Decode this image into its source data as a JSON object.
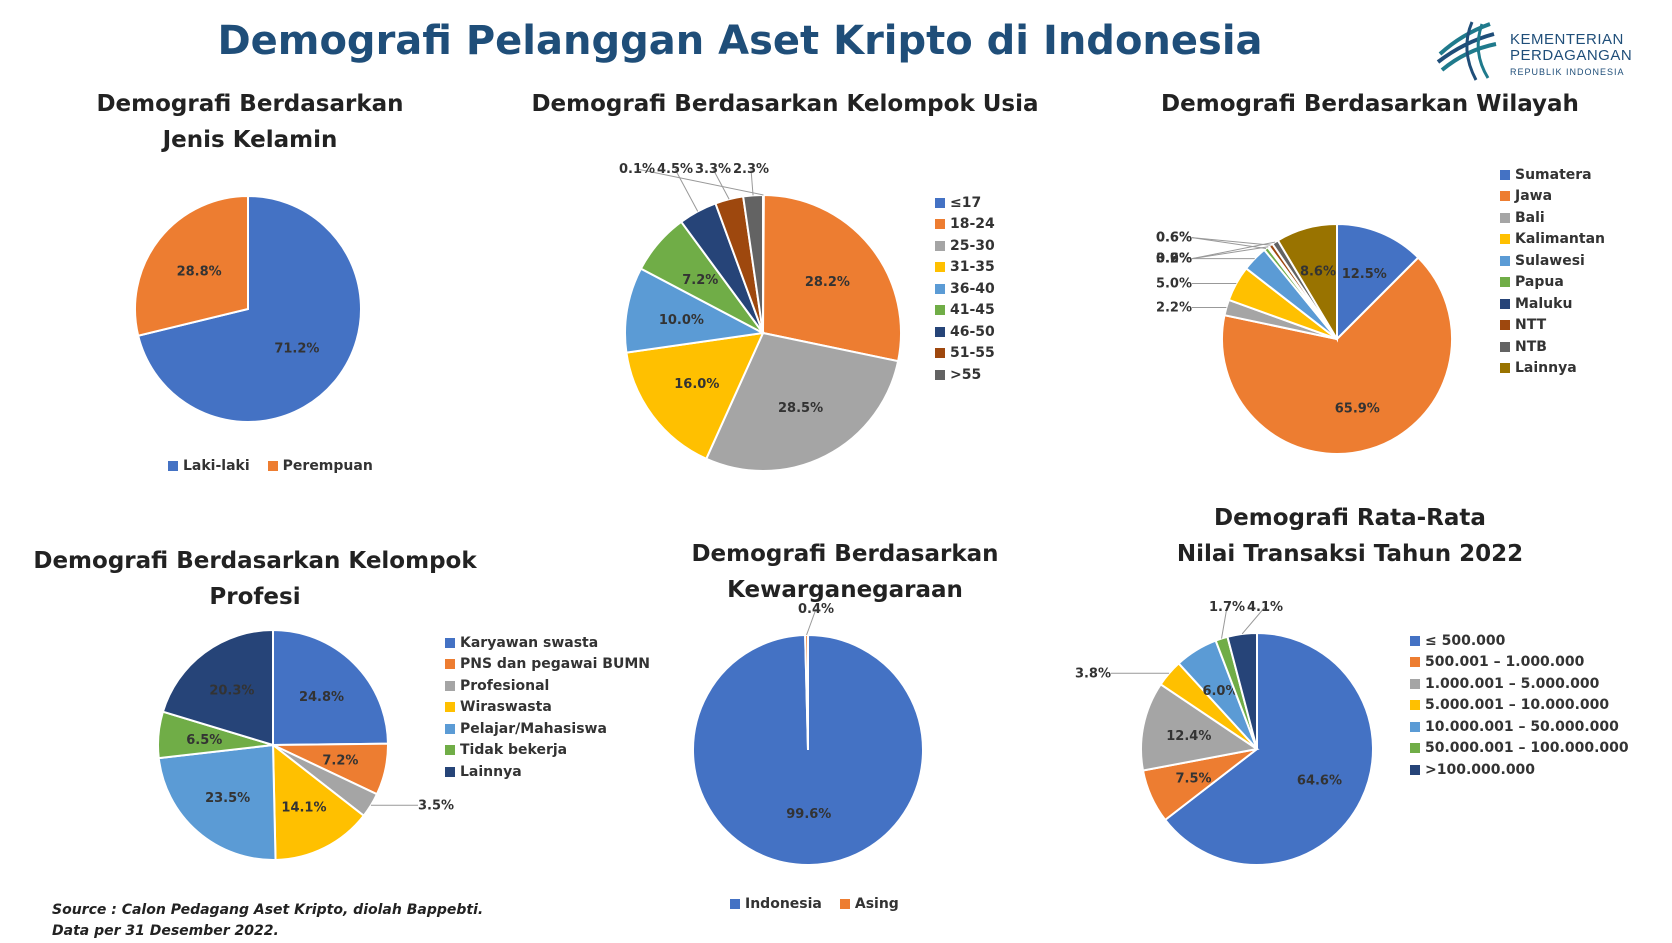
{
  "header": {
    "title": "Demografi Pelanggan Aset Kripto di Indonesia",
    "logo_line1": "KEMENTERIAN",
    "logo_line2": "PERDAGANGAN",
    "logo_line3": "REPUBLIK INDONESIA"
  },
  "footer": {
    "source": "Source : Calon Pedagang Aset Kripto, diolah Bappebti.",
    "date": "Data per 31 Desember 2022."
  },
  "chart_data": [
    {
      "id": "gender",
      "type": "pie",
      "title": [
        "Demografi Berdasarkan",
        "Jenis Kelamin"
      ],
      "legend_position": "bottom",
      "categories": [
        "Laki-laki",
        "Perempuan"
      ],
      "values": [
        71.2,
        28.8
      ],
      "labels": [
        "71.2%",
        "28.8%"
      ],
      "colors": [
        "#4472c4",
        "#ed7d31"
      ]
    },
    {
      "id": "age",
      "type": "pie",
      "title": [
        "Demografi Berdasarkan Kelompok Usia"
      ],
      "legend_position": "right",
      "categories": [
        "≤17",
        "18-24",
        "25-30",
        "31-35",
        "36-40",
        "41-45",
        "46-50",
        "51-55",
        ">55"
      ],
      "values": [
        0.1,
        28.2,
        28.5,
        16.0,
        10.0,
        7.2,
        4.5,
        3.3,
        2.3
      ],
      "labels": [
        "0.1%",
        "28.2%",
        "28.5%",
        "16.0%",
        "10.0%",
        "7.2%",
        "4.5%",
        "3.3%",
        "2.3%"
      ],
      "colors": [
        "#4472c4",
        "#ed7d31",
        "#a5a5a5",
        "#ffc000",
        "#5b9bd5",
        "#70ad47",
        "#264478",
        "#9e480e",
        "#636363"
      ]
    },
    {
      "id": "region",
      "type": "pie",
      "title": [
        "Demografi Berdasarkan Wilayah"
      ],
      "legend_position": "right",
      "categories": [
        "Sumatera",
        "Jawa",
        "Bali",
        "Kalimantan",
        "Sulawesi",
        "Papua",
        "Maluku",
        "NTT",
        "NTB",
        "Lainnya"
      ],
      "values": [
        12.5,
        65.9,
        2.2,
        5.0,
        3.6,
        0.6,
        0.2,
        0.6,
        0.9,
        8.6
      ],
      "labels": [
        "12.5%",
        "65.9%",
        "2.2%",
        "5.0%",
        "3.6%",
        "0.6%",
        "0.2%",
        "0.6%",
        "0.9%",
        "8.6%"
      ],
      "colors": [
        "#4472c4",
        "#ed7d31",
        "#a5a5a5",
        "#ffc000",
        "#5b9bd5",
        "#70ad47",
        "#264478",
        "#9e480e",
        "#636363",
        "#997300"
      ]
    },
    {
      "id": "profession",
      "type": "pie",
      "title": [
        "Demografi Berdasarkan Kelompok Profesi"
      ],
      "legend_position": "right",
      "categories": [
        "Karyawan swasta",
        "PNS dan pegawai BUMN",
        "Profesional",
        "Wiraswasta",
        "Pelajar/Mahasiswa",
        "Tidak bekerja",
        "Lainnya"
      ],
      "values": [
        24.8,
        7.2,
        3.5,
        14.1,
        23.5,
        6.5,
        20.3
      ],
      "labels": [
        "24.8%",
        "7.2%",
        "3.5%",
        "14.1%",
        "23.5%",
        "6.5%",
        "20.3%"
      ],
      "colors": [
        "#4472c4",
        "#ed7d31",
        "#a5a5a5",
        "#ffc000",
        "#5b9bd5",
        "#70ad47",
        "#264478"
      ]
    },
    {
      "id": "citizenship",
      "type": "pie",
      "title": [
        "Demografi Berdasarkan Kewarganegaraan"
      ],
      "legend_position": "bottom",
      "categories": [
        "Indonesia",
        "Asing"
      ],
      "values": [
        99.6,
        0.4
      ],
      "labels": [
        "99.6%",
        "0.4%"
      ],
      "colors": [
        "#4472c4",
        "#ed7d31"
      ]
    },
    {
      "id": "transaction",
      "type": "pie",
      "title": [
        "Demografi Rata-Rata",
        "Nilai Transaksi Tahun 2022"
      ],
      "legend_position": "right",
      "categories": [
        "≤ 500.000",
        "500.001 – 1.000.000",
        "1.000.001 – 5.000.000",
        "5.000.001 – 10.000.000",
        "10.000.001 – 50.000.000",
        "50.000.001 – 100.000.000",
        ">100.000.000"
      ],
      "values": [
        64.6,
        7.5,
        12.4,
        3.8,
        6.0,
        1.7,
        4.1
      ],
      "labels": [
        "64.6%",
        "7.5%",
        "12.4%",
        "3.8%",
        "6.0%",
        "1.7%",
        "4.1%"
      ],
      "colors": [
        "#4472c4",
        "#ed7d31",
        "#a5a5a5",
        "#ffc000",
        "#5b9bd5",
        "#70ad47",
        "#264478"
      ]
    }
  ]
}
